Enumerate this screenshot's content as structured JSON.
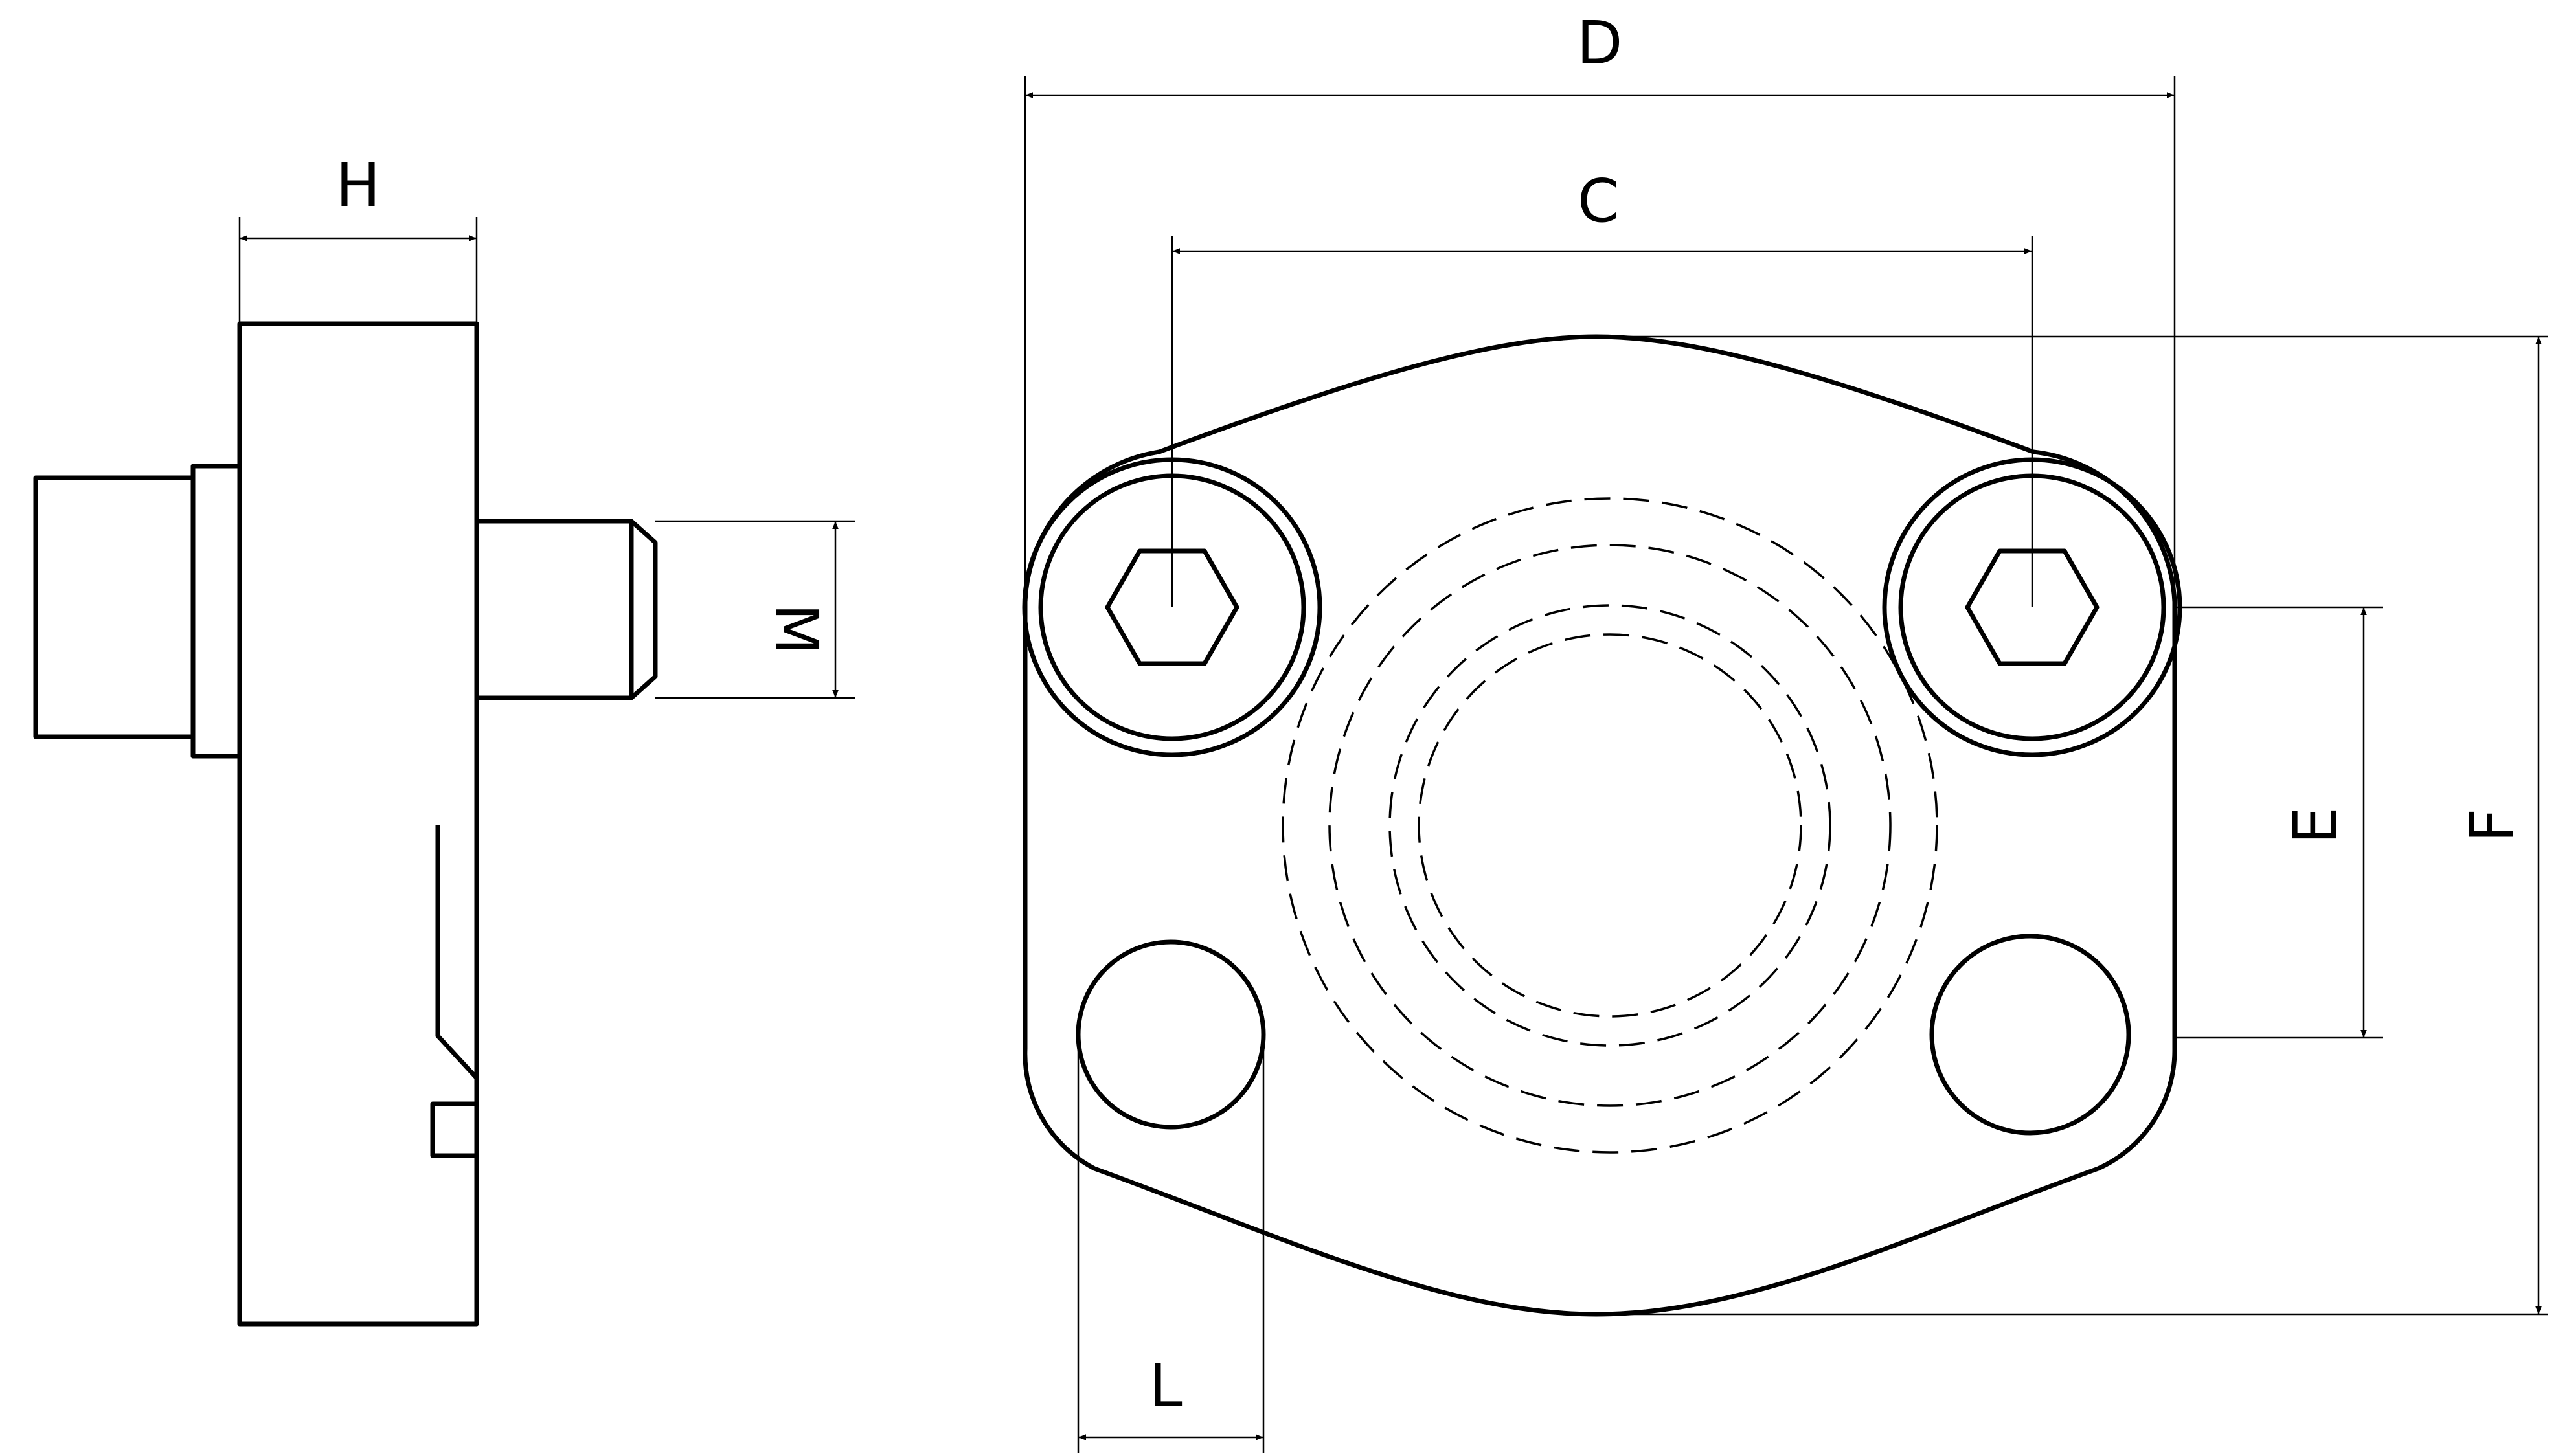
{
  "dimensions": {
    "H": "H",
    "M": "M",
    "D": "D",
    "C": "C",
    "E": "E",
    "F": "F",
    "L": "L"
  }
}
